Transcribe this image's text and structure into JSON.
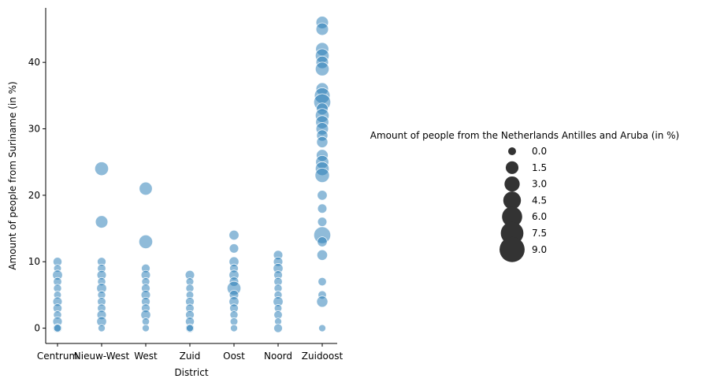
{
  "chart_data": {
    "type": "scatter",
    "xlabel": "District",
    "ylabel": "Amount of people from Suriname (in %)",
    "categories": [
      "Centrum",
      "Nieuw-West",
      "West",
      "Zuid",
      "Oost",
      "Noord",
      "Zuidoost"
    ],
    "y_ticks": [
      0,
      10,
      20,
      30,
      40
    ],
    "ylim": [
      -2.3,
      48.2
    ],
    "grid": false,
    "legend_position": "right",
    "legend_title": "Amount of people from the Netherlands Antilles and Aruba (in %)",
    "legend_sizes": [
      "0.0",
      "1.5",
      "3.0",
      "4.5",
      "6.0",
      "7.5",
      "9.0"
    ],
    "marker_color": "#1f77b4",
    "marker_alpha": 0.5,
    "points": [
      {
        "district": "Centrum",
        "y": 10,
        "s": 2.2
      },
      {
        "district": "Centrum",
        "y": 9,
        "s": 1.2
      },
      {
        "district": "Centrum",
        "y": 8,
        "s": 3.0
      },
      {
        "district": "Centrum",
        "y": 7,
        "s": 1.8
      },
      {
        "district": "Centrum",
        "y": 6,
        "s": 1.5
      },
      {
        "district": "Centrum",
        "y": 5,
        "s": 1.2
      },
      {
        "district": "Centrum",
        "y": 4,
        "s": 2.5
      },
      {
        "district": "Centrum",
        "y": 3,
        "s": 2.2
      },
      {
        "district": "Centrum",
        "y": 2,
        "s": 1.6
      },
      {
        "district": "Centrum",
        "y": 1,
        "s": 2.6
      },
      {
        "district": "Centrum",
        "y": 0,
        "s": 2.2
      },
      {
        "district": "Centrum",
        "y": 0,
        "s": 1.0
      },
      {
        "district": "Nieuw-West",
        "y": 24,
        "s": 6.0
      },
      {
        "district": "Nieuw-West",
        "y": 16,
        "s": 5.0
      },
      {
        "district": "Nieuw-West",
        "y": 10,
        "s": 2.0
      },
      {
        "district": "Nieuw-West",
        "y": 9,
        "s": 1.8
      },
      {
        "district": "Nieuw-West",
        "y": 8,
        "s": 2.5
      },
      {
        "district": "Nieuw-West",
        "y": 7,
        "s": 1.6
      },
      {
        "district": "Nieuw-West",
        "y": 6,
        "s": 3.0
      },
      {
        "district": "Nieuw-West",
        "y": 5,
        "s": 1.5
      },
      {
        "district": "Nieuw-West",
        "y": 4,
        "s": 1.8
      },
      {
        "district": "Nieuw-West",
        "y": 3,
        "s": 1.8
      },
      {
        "district": "Nieuw-West",
        "y": 2,
        "s": 2.5
      },
      {
        "district": "Nieuw-West",
        "y": 1,
        "s": 2.9
      },
      {
        "district": "Nieuw-West",
        "y": 0,
        "s": 0.8
      },
      {
        "district": "West",
        "y": 21,
        "s": 5.5
      },
      {
        "district": "West",
        "y": 13,
        "s": 6.0
      },
      {
        "district": "West",
        "y": 9,
        "s": 2.0
      },
      {
        "district": "West",
        "y": 8,
        "s": 2.5
      },
      {
        "district": "West",
        "y": 7,
        "s": 1.5
      },
      {
        "district": "West",
        "y": 6,
        "s": 2.0
      },
      {
        "district": "West",
        "y": 5,
        "s": 2.5
      },
      {
        "district": "West",
        "y": 4,
        "s": 2.0
      },
      {
        "district": "West",
        "y": 3,
        "s": 2.0
      },
      {
        "district": "West",
        "y": 2,
        "s": 2.9
      },
      {
        "district": "West",
        "y": 1,
        "s": 1.0
      },
      {
        "district": "West",
        "y": 0,
        "s": 0.8
      },
      {
        "district": "Zuid",
        "y": 8,
        "s": 2.5
      },
      {
        "district": "Zuid",
        "y": 7,
        "s": 1.3
      },
      {
        "district": "Zuid",
        "y": 6,
        "s": 1.5
      },
      {
        "district": "Zuid",
        "y": 5,
        "s": 1.2
      },
      {
        "district": "Zuid",
        "y": 4,
        "s": 2.0
      },
      {
        "district": "Zuid",
        "y": 3,
        "s": 1.8
      },
      {
        "district": "Zuid",
        "y": 2,
        "s": 2.0
      },
      {
        "district": "Zuid",
        "y": 1,
        "s": 2.2
      },
      {
        "district": "Zuid",
        "y": 0,
        "s": 2.0
      },
      {
        "district": "Zuid",
        "y": 0,
        "s": 0.8
      },
      {
        "district": "Oost",
        "y": 14,
        "s": 3.0
      },
      {
        "district": "Oost",
        "y": 12,
        "s": 2.5
      },
      {
        "district": "Oost",
        "y": 10,
        "s": 2.9
      },
      {
        "district": "Oost",
        "y": 9,
        "s": 2.0
      },
      {
        "district": "Oost",
        "y": 8,
        "s": 3.0
      },
      {
        "district": "Oost",
        "y": 7,
        "s": 2.5
      },
      {
        "district": "Oost",
        "y": 6,
        "s": 6.0
      },
      {
        "district": "Oost",
        "y": 5,
        "s": 2.5
      },
      {
        "district": "Oost",
        "y": 4,
        "s": 3.0
      },
      {
        "district": "Oost",
        "y": 3,
        "s": 2.0
      },
      {
        "district": "Oost",
        "y": 2,
        "s": 1.5
      },
      {
        "district": "Oost",
        "y": 1,
        "s": 1.2
      },
      {
        "district": "Oost",
        "y": 0,
        "s": 0.8
      },
      {
        "district": "Noord",
        "y": 11,
        "s": 2.5
      },
      {
        "district": "Noord",
        "y": 10,
        "s": 2.5
      },
      {
        "district": "Noord",
        "y": 9,
        "s": 2.9
      },
      {
        "district": "Noord",
        "y": 8,
        "s": 2.0
      },
      {
        "district": "Noord",
        "y": 7,
        "s": 1.8
      },
      {
        "district": "Noord",
        "y": 6,
        "s": 1.5
      },
      {
        "district": "Noord",
        "y": 5,
        "s": 1.5
      },
      {
        "district": "Noord",
        "y": 4,
        "s": 3.0
      },
      {
        "district": "Noord",
        "y": 3,
        "s": 1.2
      },
      {
        "district": "Noord",
        "y": 2,
        "s": 1.8
      },
      {
        "district": "Noord",
        "y": 1,
        "s": 0.8
      },
      {
        "district": "Noord",
        "y": 0,
        "s": 2.0
      },
      {
        "district": "Zuidoost",
        "y": 46,
        "s": 5.0
      },
      {
        "district": "Zuidoost",
        "y": 45,
        "s": 5.0
      },
      {
        "district": "Zuidoost",
        "y": 42,
        "s": 5.5
      },
      {
        "district": "Zuidoost",
        "y": 41,
        "s": 6.0
      },
      {
        "district": "Zuidoost",
        "y": 40,
        "s": 5.0
      },
      {
        "district": "Zuidoost",
        "y": 39,
        "s": 6.0
      },
      {
        "district": "Zuidoost",
        "y": 36,
        "s": 5.0
      },
      {
        "district": "Zuidoost",
        "y": 35,
        "s": 7.5
      },
      {
        "district": "Zuidoost",
        "y": 34,
        "s": 8.5
      },
      {
        "district": "Zuidoost",
        "y": 33,
        "s": 4.5
      },
      {
        "district": "Zuidoost",
        "y": 32,
        "s": 6.0
      },
      {
        "district": "Zuidoost",
        "y": 31,
        "s": 5.5
      },
      {
        "district": "Zuidoost",
        "y": 30,
        "s": 5.0
      },
      {
        "district": "Zuidoost",
        "y": 29,
        "s": 4.0
      },
      {
        "district": "Zuidoost",
        "y": 28,
        "s": 4.0
      },
      {
        "district": "Zuidoost",
        "y": 26,
        "s": 4.5
      },
      {
        "district": "Zuidoost",
        "y": 25,
        "s": 5.5
      },
      {
        "district": "Zuidoost",
        "y": 24,
        "s": 6.0
      },
      {
        "district": "Zuidoost",
        "y": 23,
        "s": 6.5
      },
      {
        "district": "Zuidoost",
        "y": 20,
        "s": 3.0
      },
      {
        "district": "Zuidoost",
        "y": 18,
        "s": 2.5
      },
      {
        "district": "Zuidoost",
        "y": 16,
        "s": 2.5
      },
      {
        "district": "Zuidoost",
        "y": 14,
        "s": 8.5
      },
      {
        "district": "Zuidoost",
        "y": 13,
        "s": 3.0
      },
      {
        "district": "Zuidoost",
        "y": 11,
        "s": 3.5
      },
      {
        "district": "Zuidoost",
        "y": 7,
        "s": 1.8
      },
      {
        "district": "Zuidoost",
        "y": 5,
        "s": 1.8
      },
      {
        "district": "Zuidoost",
        "y": 4,
        "s": 4.0
      },
      {
        "district": "Zuidoost",
        "y": 0,
        "s": 0.8
      }
    ]
  }
}
